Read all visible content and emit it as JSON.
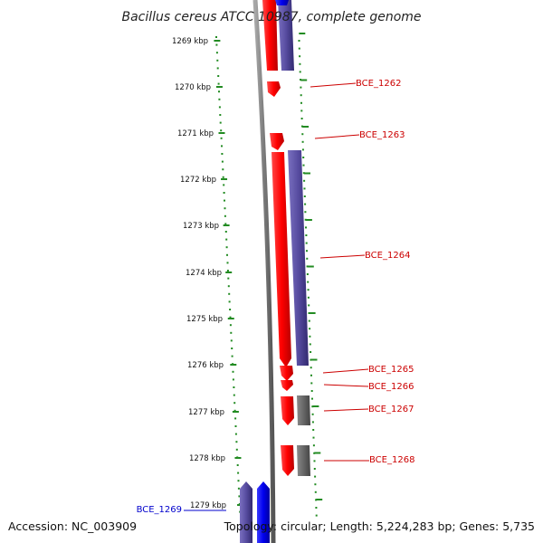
{
  "title": "Bacillus cereus ATCC 10987, complete genome",
  "accession": "Accession: NC_003909",
  "topology": "Topology: circular; Length: 5,224,283 bp; Genes: 5,735",
  "colors": {
    "backbone": "#808080",
    "ticks": "#228b22",
    "forward_gene": "#ff0000",
    "reverse_gene": "#5a4ea0",
    "bright_blue": "#0000ee",
    "gray_feature": "#606060",
    "label_red": "#cc0000",
    "label_blue": "#0000cc"
  },
  "kbp_labels": [
    "1269 kbp",
    "1270 kbp",
    "1271 kbp",
    "1272 kbp",
    "1273 kbp",
    "1274 kbp",
    "1275 kbp",
    "1276 kbp",
    "1277 kbp",
    "1278 kbp",
    "1279 kbp"
  ],
  "gene_labels": [
    {
      "text": "BCE_1262",
      "color": "red"
    },
    {
      "text": "BCE_1263",
      "color": "red"
    },
    {
      "text": "BCE_1264",
      "color": "red"
    },
    {
      "text": "BCE_1265",
      "color": "red"
    },
    {
      "text": "BCE_1266",
      "color": "red"
    },
    {
      "text": "BCE_1267",
      "color": "red"
    },
    {
      "text": "BCE_1268",
      "color": "red"
    },
    {
      "text": "BCE_1269",
      "color": "blue"
    }
  ]
}
